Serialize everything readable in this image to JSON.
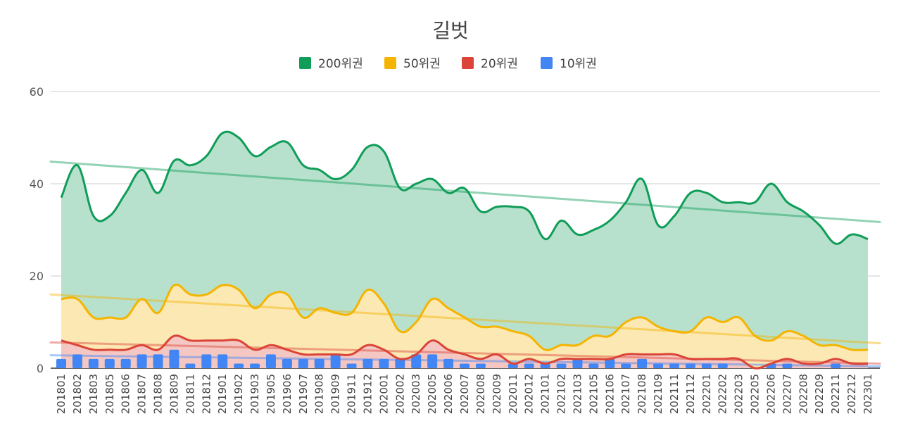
{
  "chart_data": {
    "type": "area",
    "title": "길벗",
    "xlabel": "",
    "ylabel": "",
    "ylim": [
      0,
      60
    ],
    "yticks": [
      0,
      20,
      40,
      60
    ],
    "grid": true,
    "legend_position": "top-center",
    "categories": [
      "201801",
      "201802",
      "201803",
      "201805",
      "201806",
      "201807",
      "201808",
      "201809",
      "201811",
      "201812",
      "201901",
      "201902",
      "201903",
      "201905",
      "201906",
      "201907",
      "201908",
      "201909",
      "201911",
      "201912",
      "202001",
      "202002",
      "202003",
      "202005",
      "202006",
      "202007",
      "202008",
      "202009",
      "202011",
      "202012",
      "202101",
      "202102",
      "202103",
      "202105",
      "202106",
      "202107",
      "202108",
      "202109",
      "202111",
      "202112",
      "202201",
      "202202",
      "202203",
      "202205",
      "202206",
      "202207",
      "202208",
      "202209",
      "202211",
      "202212",
      "202301"
    ],
    "series": [
      {
        "name": "200위권",
        "kind": "area",
        "color": "#0f9d58",
        "fill": "#b7e1cd",
        "values": [
          37,
          44,
          33,
          33,
          38,
          43,
          38,
          45,
          44,
          46,
          51,
          50,
          46,
          48,
          49,
          44,
          43,
          41,
          43,
          48,
          47,
          39,
          40,
          41,
          38,
          39,
          34,
          35,
          35,
          34,
          28,
          32,
          29,
          30,
          32,
          36,
          41,
          31,
          33,
          38,
          38,
          36,
          36,
          36,
          40,
          36,
          34,
          31,
          27,
          29,
          28
        ],
        "trend": [
          44.8,
          31.7
        ]
      },
      {
        "name": "50위권",
        "kind": "area",
        "color": "#f4b400",
        "fill": "#fce8b2",
        "values": [
          15,
          15,
          11,
          11,
          11,
          15,
          12,
          18,
          16,
          16,
          18,
          17,
          13,
          16,
          16,
          11,
          13,
          12,
          12,
          17,
          14,
          8,
          10,
          15,
          13,
          11,
          9,
          9,
          8,
          7,
          4,
          5,
          5,
          7,
          7,
          10,
          11,
          9,
          8,
          8,
          11,
          10,
          11,
          7,
          6,
          8,
          7,
          5,
          5,
          4,
          4
        ],
        "trend": [
          16.0,
          5.4
        ]
      },
      {
        "name": "20위권",
        "kind": "area",
        "color": "#db4437",
        "fill": "#f4c7c3",
        "values": [
          6,
          5,
          4,
          4,
          4,
          5,
          4,
          7,
          6,
          6,
          6,
          6,
          4,
          5,
          4,
          3,
          3,
          3,
          3,
          5,
          4,
          2,
          3,
          6,
          4,
          3,
          2,
          3,
          1,
          2,
          1,
          2,
          2,
          2,
          2,
          3,
          3,
          3,
          3,
          2,
          2,
          2,
          2,
          0,
          1,
          2,
          1,
          1,
          2,
          1,
          1
        ],
        "trend": [
          5.6,
          1.0
        ]
      },
      {
        "name": "10위권",
        "kind": "bar",
        "color": "#4285f4",
        "values": [
          2,
          3,
          2,
          2,
          2,
          3,
          3,
          4,
          1,
          3,
          3,
          1,
          1,
          3,
          2,
          2,
          2,
          3,
          1,
          2,
          2,
          2,
          3,
          3,
          2,
          1,
          1,
          0,
          1,
          1,
          1,
          1,
          2,
          1,
          2,
          1,
          2,
          1,
          1,
          1,
          1,
          1,
          0,
          0,
          1,
          1,
          0,
          0,
          1,
          0,
          0
        ],
        "trend": [
          2.8,
          0.4
        ]
      }
    ]
  }
}
